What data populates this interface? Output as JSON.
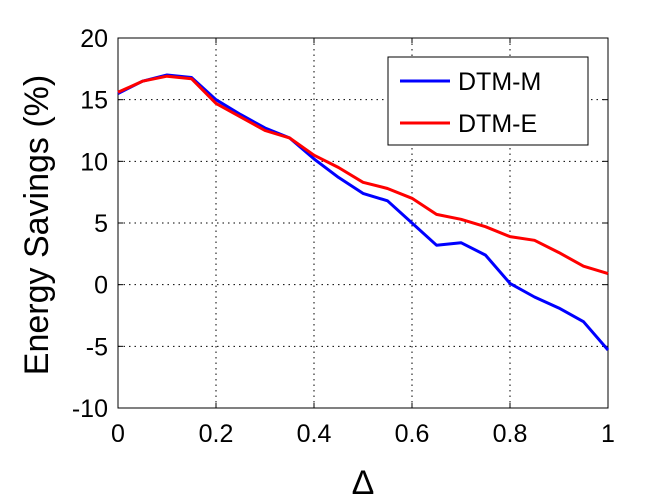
{
  "chart_data": {
    "type": "line",
    "title": "",
    "xlabel": "Δ",
    "ylabel": "Energy Savings (%)",
    "xlim": [
      0,
      1
    ],
    "ylim": [
      -10,
      20
    ],
    "xticks": [
      0,
      0.2,
      0.4,
      0.6,
      0.8,
      1
    ],
    "xtick_labels": [
      "0",
      "0.2",
      "0.4",
      "0.6",
      "0.8",
      "1"
    ],
    "yticks": [
      -10,
      -5,
      0,
      5,
      10,
      15,
      20
    ],
    "ytick_labels": [
      "-10",
      "-5",
      "0",
      "5",
      "10",
      "15",
      "20"
    ],
    "grid": true,
    "legend_position": "top-right",
    "x": [
      0,
      0.05,
      0.1,
      0.15,
      0.2,
      0.25,
      0.3,
      0.35,
      0.4,
      0.45,
      0.5,
      0.55,
      0.6,
      0.65,
      0.7,
      0.75,
      0.8,
      0.85,
      0.9,
      0.95,
      1
    ],
    "series": [
      {
        "name": "DTM-M",
        "color": "#0000ff",
        "values": [
          15.5,
          16.5,
          17.0,
          16.8,
          15.0,
          13.8,
          12.7,
          11.9,
          10.2,
          8.7,
          7.4,
          6.8,
          5.0,
          3.2,
          3.4,
          2.4,
          0.1,
          -1.0,
          -1.9,
          -3.0,
          -5.3
        ]
      },
      {
        "name": "DTM-E",
        "color": "#ff0000",
        "values": [
          15.6,
          16.5,
          16.9,
          16.7,
          14.7,
          13.6,
          12.5,
          11.9,
          10.5,
          9.5,
          8.3,
          7.8,
          7.0,
          5.7,
          5.3,
          4.7,
          3.9,
          3.6,
          2.6,
          1.5,
          0.9
        ]
      }
    ]
  }
}
